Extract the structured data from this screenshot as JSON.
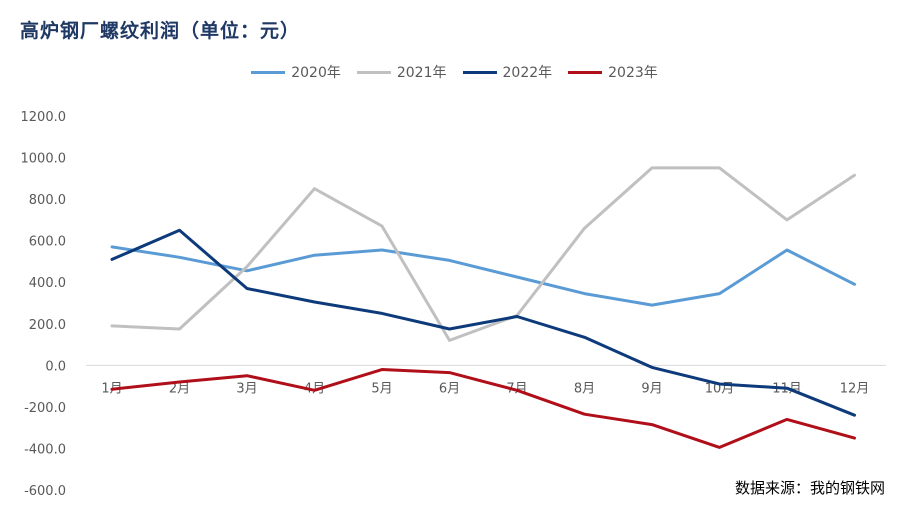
{
  "chart_data": {
    "type": "line",
    "title": "高炉钢厂螺纹利润（单位：元）",
    "source": "数据来源：我的钢铁网",
    "categories": [
      "1月",
      "2月",
      "3月",
      "4月",
      "5月",
      "6月",
      "7月",
      "8月",
      "9月",
      "10月",
      "11月",
      "12月"
    ],
    "yticks": [
      "1200.0",
      "1000.0",
      "800.0",
      "600.0",
      "400.0",
      "200.0",
      "0.0",
      "-200.0",
      "-400.0",
      "-600.0"
    ],
    "ylim": [
      -600,
      1200
    ],
    "ystep": 200,
    "grid": false,
    "legend_position": "top-center",
    "series": [
      {
        "name": "2020年",
        "color": "#5b9bd5",
        "values": [
          570,
          520,
          455,
          530,
          555,
          505,
          425,
          345,
          290,
          345,
          555,
          390
        ]
      },
      {
        "name": "2021年",
        "color": "#c0c0c0",
        "values": [
          190,
          175,
          475,
          850,
          670,
          120,
          240,
          660,
          950,
          950,
          700,
          915
        ]
      },
      {
        "name": "2022年",
        "color": "#0d3a7a",
        "values": [
          510,
          650,
          370,
          305,
          250,
          175,
          235,
          135,
          -10,
          -90,
          -110,
          -240
        ]
      },
      {
        "name": "2023年",
        "color": "#b00f1a",
        "values": [
          -115,
          -80,
          -50,
          -120,
          -20,
          -35,
          -120,
          -235,
          -285,
          -395,
          -260,
          -350
        ]
      }
    ]
  }
}
